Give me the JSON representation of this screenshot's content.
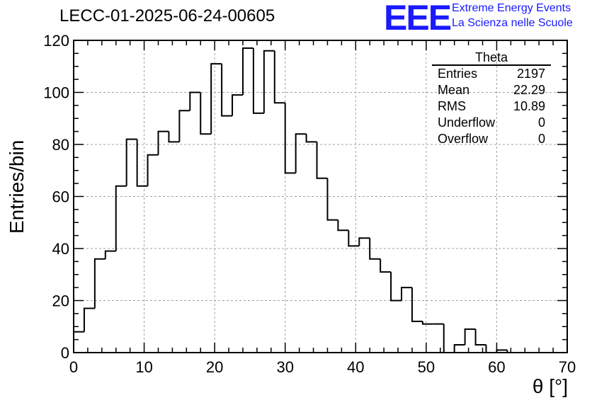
{
  "header": {
    "title": "LECC-01-2025-06-24-00605",
    "logo_text": "EEE",
    "logo_line1": "Extreme Energy Events",
    "logo_line2": "La Scienza nelle Scuole",
    "brand_color": "#1a1aff"
  },
  "stats": {
    "title": "Theta",
    "rows": [
      {
        "label": "Entries",
        "value": "2197"
      },
      {
        "label": "Mean",
        "value": "22.29"
      },
      {
        "label": "RMS",
        "value": "10.89"
      },
      {
        "label": "Underflow",
        "value": "0"
      },
      {
        "label": "Overflow",
        "value": "0"
      }
    ]
  },
  "chart_data": {
    "type": "histogram",
    "title": "LECC-01-2025-06-24-00605",
    "xlabel": "θ [°]",
    "ylabel": "Entries/bin",
    "xlim": [
      0,
      70
    ],
    "ylim": [
      0,
      120
    ],
    "bin_width": 1.5,
    "x_ticks": [
      0,
      10,
      20,
      30,
      40,
      50,
      60,
      70
    ],
    "y_ticks": [
      0,
      20,
      40,
      60,
      80,
      100,
      120
    ],
    "grid": true,
    "values": [
      8,
      17,
      36,
      39,
      64,
      82,
      64,
      76,
      85,
      81,
      93,
      100,
      84,
      111,
      91,
      99,
      117,
      92,
      116,
      96,
      69,
      84,
      81,
      67,
      51,
      47,
      41,
      44,
      36,
      31,
      20,
      25,
      12,
      11,
      11,
      0,
      3,
      9,
      3,
      0,
      1,
      0,
      0,
      0,
      0,
      0,
      0
    ]
  }
}
